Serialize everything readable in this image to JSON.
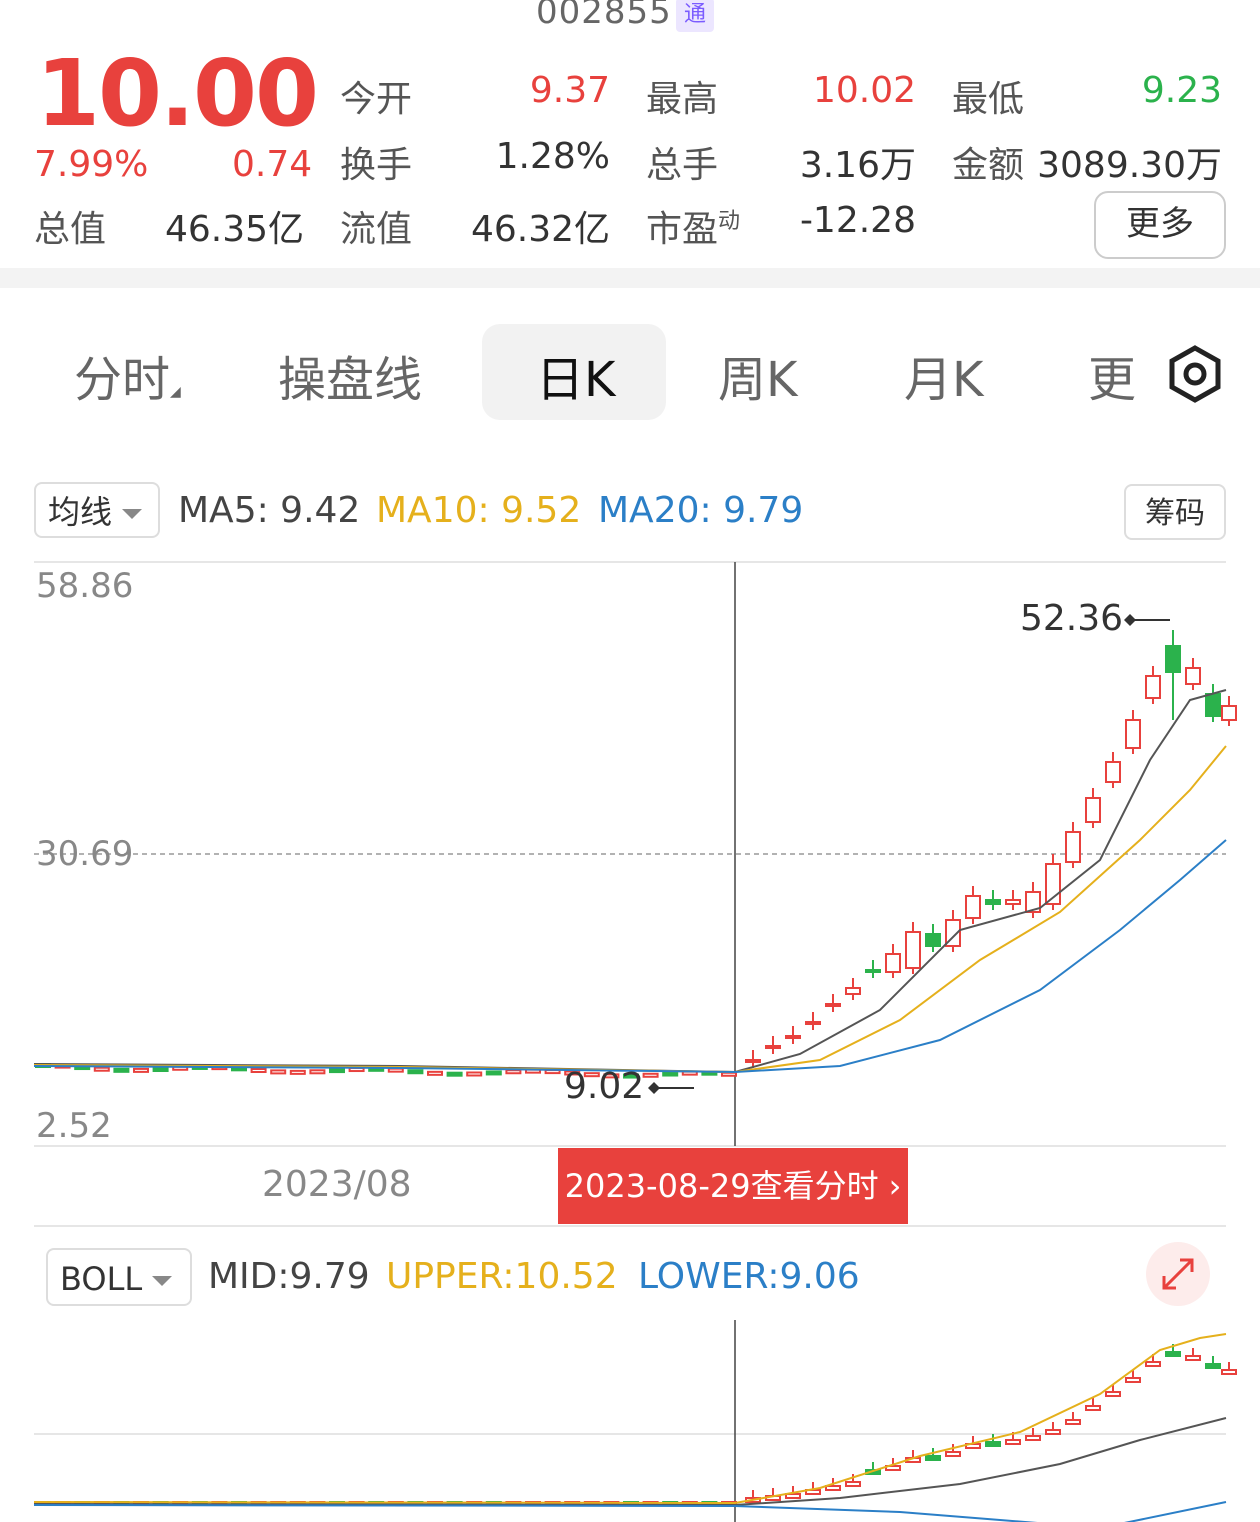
{
  "header": {
    "stock_code": "002855",
    "tong_badge": "通"
  },
  "quote": {
    "price": "10.00",
    "change_pct": "7.99%",
    "change_amt": "0.74",
    "fields": [
      {
        "label": "今开",
        "value": "9.37"
      },
      {
        "label": "最高",
        "value": "10.02"
      },
      {
        "label": "最低",
        "value": "9.23"
      },
      {
        "label": "换手",
        "value": "1.28%"
      },
      {
        "label": "总手",
        "value": "3.16万"
      },
      {
        "label": "金额",
        "value": "3089.30万"
      },
      {
        "label": "总值",
        "value": "46.35亿"
      },
      {
        "label": "流值",
        "value": "46.32亿"
      },
      {
        "label": "市盈",
        "label_sup": "动",
        "value": "-12.28"
      }
    ],
    "more_label": "更多"
  },
  "tabs": [
    "分时",
    "操盘线",
    "日K",
    "周K",
    "月K",
    "更"
  ],
  "active_tab": "日K",
  "indicator": {
    "selector": "均线",
    "ma5": "MA5: 9.42",
    "ma10": "MA10: 9.52",
    "ma20": "MA20: 9.79",
    "chips_label": "筹码"
  },
  "chart_data": {
    "type": "candlestick",
    "y_labels": [
      "58.86",
      "30.69",
      "2.52"
    ],
    "x_labels": [
      "2023/08"
    ],
    "max_label": "52.36",
    "min_label": "9.02",
    "crosshair_date": "2023-08-29",
    "series": [
      {
        "name": "MA5",
        "color": "#555555"
      },
      {
        "name": "MA10",
        "color": "#e5b01c"
      },
      {
        "name": "MA20",
        "color": "#2b7fc7"
      }
    ]
  },
  "banner": {
    "date": "2023-08-29",
    "text": "查看分时"
  },
  "boll": {
    "selector": "BOLL",
    "mid": "MID:9.79",
    "upper": "UPPER:10.52",
    "lower": "LOWER:9.06"
  },
  "colors": {
    "up": "#e8413d",
    "down": "#2bb24c",
    "ma5": "#555555",
    "ma10": "#e5b01c",
    "ma20": "#2b7fc7"
  }
}
